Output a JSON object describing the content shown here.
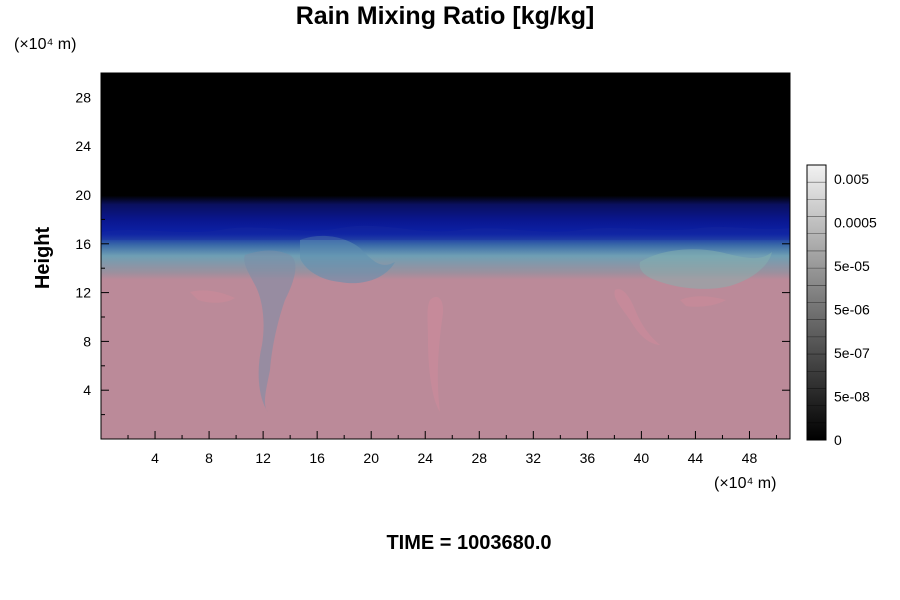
{
  "chart_data": {
    "type": "heatmap",
    "title": "Rain Mixing Ratio [kg/kg]",
    "ylabel": "Height",
    "y_unit": "(×10⁴ m)",
    "x_unit": "(×10⁴ m)",
    "xlim": [
      0,
      51
    ],
    "ylim": [
      0,
      30
    ],
    "xticks": [
      4,
      8,
      12,
      16,
      20,
      24,
      28,
      32,
      36,
      40,
      44,
      48
    ],
    "yticks": [
      4,
      8,
      12,
      16,
      20,
      24,
      28
    ],
    "colorbar": {
      "labels": [
        "0.005",
        "0.0005",
        "5e-05",
        "5e-06",
        "5e-07",
        "5e-08",
        "0"
      ]
    },
    "field_layers": [
      {
        "region": "above 20",
        "color": "#000000"
      },
      {
        "region": "about 16–20",
        "color": "#0a168e"
      },
      {
        "region": "about 13.5–16",
        "color": "#6f9fb4"
      },
      {
        "region": "below 13.5",
        "color": "#bb8a99"
      }
    ],
    "footer": "TIME = 1003680.0"
  }
}
